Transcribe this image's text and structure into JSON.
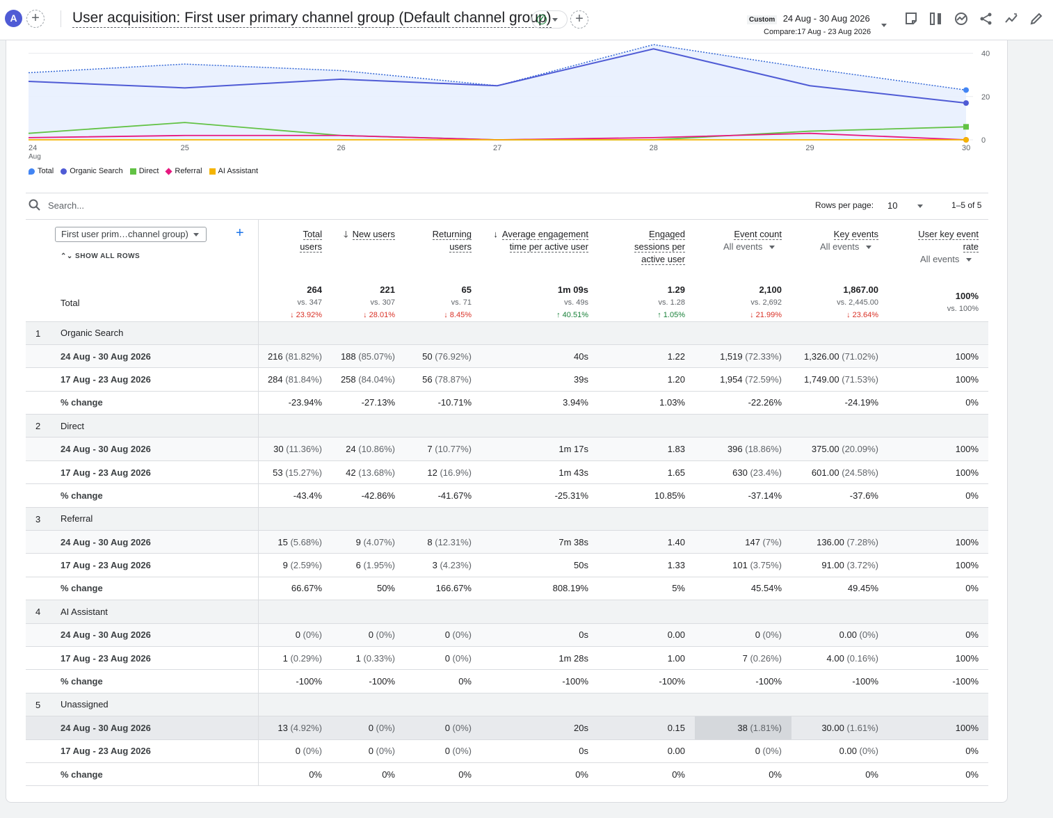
{
  "header": {
    "avatar_letter": "A",
    "title": "User acquisition: First user primary channel group (Default channel group)",
    "date_tag": "Custom",
    "date_range": "24 Aug - 30 Aug 2026",
    "compare": "Compare:17 Aug - 23 Aug 2026"
  },
  "chart_data": {
    "type": "line",
    "x": [
      "24 Aug",
      "25",
      "26",
      "27",
      "28",
      "29",
      "30"
    ],
    "x_tick_labels": [
      "24",
      "25",
      "26",
      "27",
      "28",
      "29",
      "30"
    ],
    "x_tick_sublabel": "Aug",
    "ylim": [
      0,
      45
    ],
    "y_ticks": [
      "0",
      "20",
      "40"
    ],
    "series": [
      {
        "name": "Total",
        "color": "#4285f4",
        "values": [
          31,
          35,
          32,
          25,
          44,
          33,
          23
        ]
      },
      {
        "name": "Organic Search",
        "color": "#4f5bd5",
        "values": [
          27,
          24,
          28,
          25,
          42,
          25,
          17
        ]
      },
      {
        "name": "Direct",
        "color": "#62c244",
        "values": [
          3,
          8,
          2,
          0,
          0,
          4,
          6
        ]
      },
      {
        "name": "Referral",
        "color": "#e6187f",
        "values": [
          1,
          2,
          2,
          0,
          1,
          3,
          0
        ]
      },
      {
        "name": "AI Assistant",
        "color": "#f4b400",
        "values": [
          0,
          0,
          0,
          0,
          0,
          0,
          0
        ]
      }
    ]
  },
  "table": {
    "search_placeholder": "Search...",
    "rows_per_page_label": "Rows per page:",
    "rows_per_page": "10",
    "pager": "1–5 of 5",
    "dimension": "First user prim…channel group)",
    "show_all": "SHOW ALL ROWS",
    "total_label": "Total",
    "metrics": [
      {
        "l1": "Total",
        "l2": "users",
        "sub": "",
        "sort": false
      },
      {
        "l1": "New users",
        "l2": "",
        "sub": "",
        "sort": true
      },
      {
        "l1": "Returning",
        "l2": "users",
        "sub": "",
        "sort": false
      },
      {
        "l1": "Average engagement",
        "l2": "time per active user",
        "sub": "",
        "sort": true
      },
      {
        "l1": "Engaged",
        "l2": "sessions per",
        "l3": "active user",
        "sub": "",
        "sort": false
      },
      {
        "l1": "Event count",
        "l2": "",
        "sub": "All events",
        "sort": false
      },
      {
        "l1": "Key events",
        "l2": "",
        "sub": "All events",
        "sort": false
      },
      {
        "l1": "User key event",
        "l2": "rate",
        "sub": "All events",
        "sort": false
      }
    ],
    "totals": [
      {
        "v": "264",
        "vs": "vs. 347",
        "chg": "↓ 23.92%",
        "dir": "down"
      },
      {
        "v": "221",
        "vs": "vs. 307",
        "chg": "↓ 28.01%",
        "dir": "down"
      },
      {
        "v": "65",
        "vs": "vs. 71",
        "chg": "↓ 8.45%",
        "dir": "down"
      },
      {
        "v": "1m 09s",
        "vs": "vs. 49s",
        "chg": "↑ 40.51%",
        "dir": "up"
      },
      {
        "v": "1.29",
        "vs": "vs. 1.28",
        "chg": "↑ 1.05%",
        "dir": "up"
      },
      {
        "v": "2,100",
        "vs": "vs. 2,692",
        "chg": "↓ 21.99%",
        "dir": "down"
      },
      {
        "v": "1,867.00",
        "vs": "vs. 2,445.00",
        "chg": "↓ 23.64%",
        "dir": "down"
      },
      {
        "v": "100%",
        "vs": "vs. 100%",
        "chg": "",
        "dir": ""
      }
    ],
    "groups": [
      {
        "idx": "1",
        "name": "Organic Search",
        "rows": [
          {
            "label": "24 Aug - 30 Aug 2026",
            "cells": [
              [
                "216",
                "(81.82%)"
              ],
              [
                "188",
                "(85.07%)"
              ],
              [
                "50",
                "(76.92%)"
              ],
              [
                "40s",
                ""
              ],
              [
                "1.22",
                ""
              ],
              [
                "1,519",
                "(72.33%)"
              ],
              [
                "1,326.00",
                "(71.02%)"
              ],
              [
                "100%",
                ""
              ]
            ]
          },
          {
            "label": "17 Aug - 23 Aug 2026",
            "cells": [
              [
                "284",
                "(81.84%)"
              ],
              [
                "258",
                "(84.04%)"
              ],
              [
                "56",
                "(78.87%)"
              ],
              [
                "39s",
                ""
              ],
              [
                "1.20",
                ""
              ],
              [
                "1,954",
                "(72.59%)"
              ],
              [
                "1,749.00",
                "(71.53%)"
              ],
              [
                "100%",
                ""
              ]
            ]
          },
          {
            "label": "% change",
            "cells": [
              [
                "-23.94%",
                ""
              ],
              [
                "-27.13%",
                ""
              ],
              [
                "-10.71%",
                ""
              ],
              [
                "3.94%",
                ""
              ],
              [
                "1.03%",
                ""
              ],
              [
                "-22.26%",
                ""
              ],
              [
                "-24.19%",
                ""
              ],
              [
                "0%",
                ""
              ]
            ]
          }
        ]
      },
      {
        "idx": "2",
        "name": "Direct",
        "rows": [
          {
            "label": "24 Aug - 30 Aug 2026",
            "cells": [
              [
                "30",
                "(11.36%)"
              ],
              [
                "24",
                "(10.86%)"
              ],
              [
                "7",
                "(10.77%)"
              ],
              [
                "1m 17s",
                ""
              ],
              [
                "1.83",
                ""
              ],
              [
                "396",
                "(18.86%)"
              ],
              [
                "375.00",
                "(20.09%)"
              ],
              [
                "100%",
                ""
              ]
            ]
          },
          {
            "label": "17 Aug - 23 Aug 2026",
            "cells": [
              [
                "53",
                "(15.27%)"
              ],
              [
                "42",
                "(13.68%)"
              ],
              [
                "12",
                "(16.9%)"
              ],
              [
                "1m 43s",
                ""
              ],
              [
                "1.65",
                ""
              ],
              [
                "630",
                "(23.4%)"
              ],
              [
                "601.00",
                "(24.58%)"
              ],
              [
                "100%",
                ""
              ]
            ]
          },
          {
            "label": "% change",
            "cells": [
              [
                "-43.4%",
                ""
              ],
              [
                "-42.86%",
                ""
              ],
              [
                "-41.67%",
                ""
              ],
              [
                "-25.31%",
                ""
              ],
              [
                "10.85%",
                ""
              ],
              [
                "-37.14%",
                ""
              ],
              [
                "-37.6%",
                ""
              ],
              [
                "0%",
                ""
              ]
            ]
          }
        ]
      },
      {
        "idx": "3",
        "name": "Referral",
        "rows": [
          {
            "label": "24 Aug - 30 Aug 2026",
            "cells": [
              [
                "15",
                "(5.68%)"
              ],
              [
                "9",
                "(4.07%)"
              ],
              [
                "8",
                "(12.31%)"
              ],
              [
                "7m 38s",
                ""
              ],
              [
                "1.40",
                ""
              ],
              [
                "147",
                "(7%)"
              ],
              [
                "136.00",
                "(7.28%)"
              ],
              [
                "100%",
                ""
              ]
            ]
          },
          {
            "label": "17 Aug - 23 Aug 2026",
            "cells": [
              [
                "9",
                "(2.59%)"
              ],
              [
                "6",
                "(1.95%)"
              ],
              [
                "3",
                "(4.23%)"
              ],
              [
                "50s",
                ""
              ],
              [
                "1.33",
                ""
              ],
              [
                "101",
                "(3.75%)"
              ],
              [
                "91.00",
                "(3.72%)"
              ],
              [
                "100%",
                ""
              ]
            ]
          },
          {
            "label": "% change",
            "cells": [
              [
                "66.67%",
                ""
              ],
              [
                "50%",
                ""
              ],
              [
                "166.67%",
                ""
              ],
              [
                "808.19%",
                ""
              ],
              [
                "5%",
                ""
              ],
              [
                "45.54%",
                ""
              ],
              [
                "49.45%",
                ""
              ],
              [
                "0%",
                ""
              ]
            ]
          }
        ]
      },
      {
        "idx": "4",
        "name": "AI Assistant",
        "rows": [
          {
            "label": "24 Aug - 30 Aug 2026",
            "cells": [
              [
                "0",
                "(0%)"
              ],
              [
                "0",
                "(0%)"
              ],
              [
                "0",
                "(0%)"
              ],
              [
                "0s",
                ""
              ],
              [
                "0.00",
                ""
              ],
              [
                "0",
                "(0%)"
              ],
              [
                "0.00",
                "(0%)"
              ],
              [
                "0%",
                ""
              ]
            ]
          },
          {
            "label": "17 Aug - 23 Aug 2026",
            "cells": [
              [
                "1",
                "(0.29%)"
              ],
              [
                "1",
                "(0.33%)"
              ],
              [
                "0",
                "(0%)"
              ],
              [
                "1m 28s",
                ""
              ],
              [
                "1.00",
                ""
              ],
              [
                "7",
                "(0.26%)"
              ],
              [
                "4.00",
                "(0.16%)"
              ],
              [
                "100%",
                ""
              ]
            ]
          },
          {
            "label": "% change",
            "cells": [
              [
                "-100%",
                ""
              ],
              [
                "-100%",
                ""
              ],
              [
                "0%",
                ""
              ],
              [
                "-100%",
                ""
              ],
              [
                "-100%",
                ""
              ],
              [
                "-100%",
                ""
              ],
              [
                "-100%",
                ""
              ],
              [
                "-100%",
                ""
              ]
            ]
          }
        ]
      },
      {
        "idx": "5",
        "name": "Unassigned",
        "rows": [
          {
            "label": "24 Aug - 30 Aug 2026",
            "cells": [
              [
                "13",
                "(4.92%)"
              ],
              [
                "0",
                "(0%)"
              ],
              [
                "0",
                "(0%)"
              ],
              [
                "20s",
                ""
              ],
              [
                "0.15",
                ""
              ],
              [
                "38",
                "(1.81%)"
              ],
              [
                "30.00",
                "(1.61%)"
              ],
              [
                "100%",
                ""
              ]
            ]
          },
          {
            "label": "17 Aug - 23 Aug 2026",
            "cells": [
              [
                "0",
                "(0%)"
              ],
              [
                "0",
                "(0%)"
              ],
              [
                "0",
                "(0%)"
              ],
              [
                "0s",
                ""
              ],
              [
                "0.00",
                ""
              ],
              [
                "0",
                "(0%)"
              ],
              [
                "0.00",
                "(0%)"
              ],
              [
                "0%",
                ""
              ]
            ]
          },
          {
            "label": "% change",
            "cells": [
              [
                "0%",
                ""
              ],
              [
                "0%",
                ""
              ],
              [
                "0%",
                ""
              ],
              [
                "0%",
                ""
              ],
              [
                "0%",
                ""
              ],
              [
                "0%",
                ""
              ],
              [
                "0%",
                ""
              ],
              [
                "0%",
                ""
              ]
            ]
          }
        ]
      }
    ]
  }
}
